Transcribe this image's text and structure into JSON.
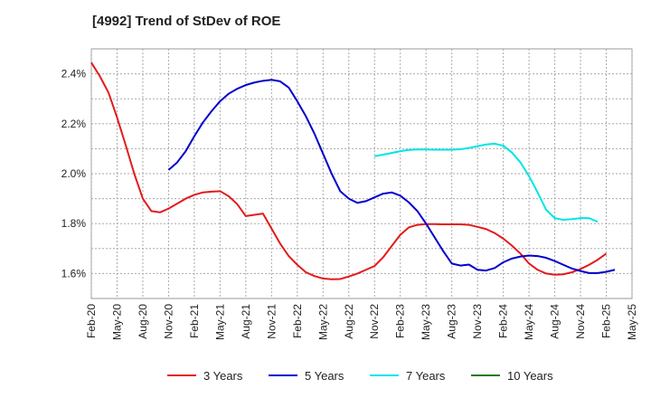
{
  "chart_data": {
    "type": "line",
    "title": "[4992]  Trend of StDev of ROE",
    "xlabel": "",
    "ylabel": "",
    "ylim": [
      1.5,
      2.5
    ],
    "y_ticks": [
      "1.6%",
      "1.8%",
      "2.0%",
      "2.2%",
      "2.4%"
    ],
    "y_tick_values": [
      1.6,
      1.8,
      2.0,
      2.2,
      2.4
    ],
    "x_ticks": [
      "Feb-20",
      "May-20",
      "Aug-20",
      "Nov-20",
      "Feb-21",
      "May-21",
      "Aug-21",
      "Nov-21",
      "Feb-22",
      "May-22",
      "Aug-22",
      "Nov-22",
      "Feb-23",
      "May-23",
      "Aug-23",
      "Nov-23",
      "Feb-24",
      "May-24",
      "Aug-24",
      "Nov-24",
      "Feb-25",
      "May-25"
    ],
    "grid": true,
    "legend_position": "bottom",
    "series": [
      {
        "name": "3 Years",
        "color": "#e31a1c",
        "start": "Feb-20",
        "values": [
          2.445,
          2.39,
          2.325,
          2.225,
          2.115,
          2.0,
          1.9,
          1.85,
          1.845,
          1.86,
          1.88,
          1.9,
          1.915,
          1.925,
          1.928,
          1.93,
          1.91,
          1.878,
          1.83,
          1.835,
          1.84,
          1.78,
          1.72,
          1.67,
          1.635,
          1.605,
          1.59,
          1.58,
          1.577,
          1.578,
          1.588,
          1.6,
          1.615,
          1.63,
          1.665,
          1.71,
          1.755,
          1.785,
          1.795,
          1.798,
          1.798,
          1.797,
          1.797,
          1.797,
          1.795,
          1.787,
          1.778,
          1.762,
          1.74,
          1.712,
          1.68,
          1.64,
          1.615,
          1.6,
          1.595,
          1.597,
          1.605,
          1.618,
          1.635,
          1.655,
          1.68
        ]
      },
      {
        "name": "5 Years",
        "color": "#0000cc",
        "start": "Nov-20",
        "values": [
          2.015,
          2.045,
          2.09,
          2.15,
          2.205,
          2.25,
          2.29,
          2.32,
          2.34,
          2.355,
          2.365,
          2.372,
          2.376,
          2.37,
          2.345,
          2.29,
          2.23,
          2.16,
          2.08,
          2.0,
          1.93,
          1.9,
          1.883,
          1.89,
          1.905,
          1.92,
          1.925,
          1.912,
          1.885,
          1.85,
          1.8,
          1.745,
          1.69,
          1.64,
          1.632,
          1.636,
          1.615,
          1.612,
          1.622,
          1.645,
          1.66,
          1.668,
          1.672,
          1.67,
          1.663,
          1.65,
          1.635,
          1.62,
          1.61,
          1.602,
          1.602,
          1.607,
          1.615
        ]
      },
      {
        "name": "7 Years",
        "color": "#00e5e5",
        "start": "Nov-22",
        "values": [
          2.07,
          2.076,
          2.083,
          2.09,
          2.095,
          2.097,
          2.097,
          2.096,
          2.096,
          2.096,
          2.098,
          2.103,
          2.11,
          2.117,
          2.12,
          2.112,
          2.085,
          2.045,
          1.99,
          1.925,
          1.855,
          1.822,
          1.815,
          1.818,
          1.822,
          1.822,
          1.807
        ]
      },
      {
        "name": "10 Years",
        "color": "#1a7a1a",
        "start": "Feb-20",
        "values": []
      }
    ]
  }
}
